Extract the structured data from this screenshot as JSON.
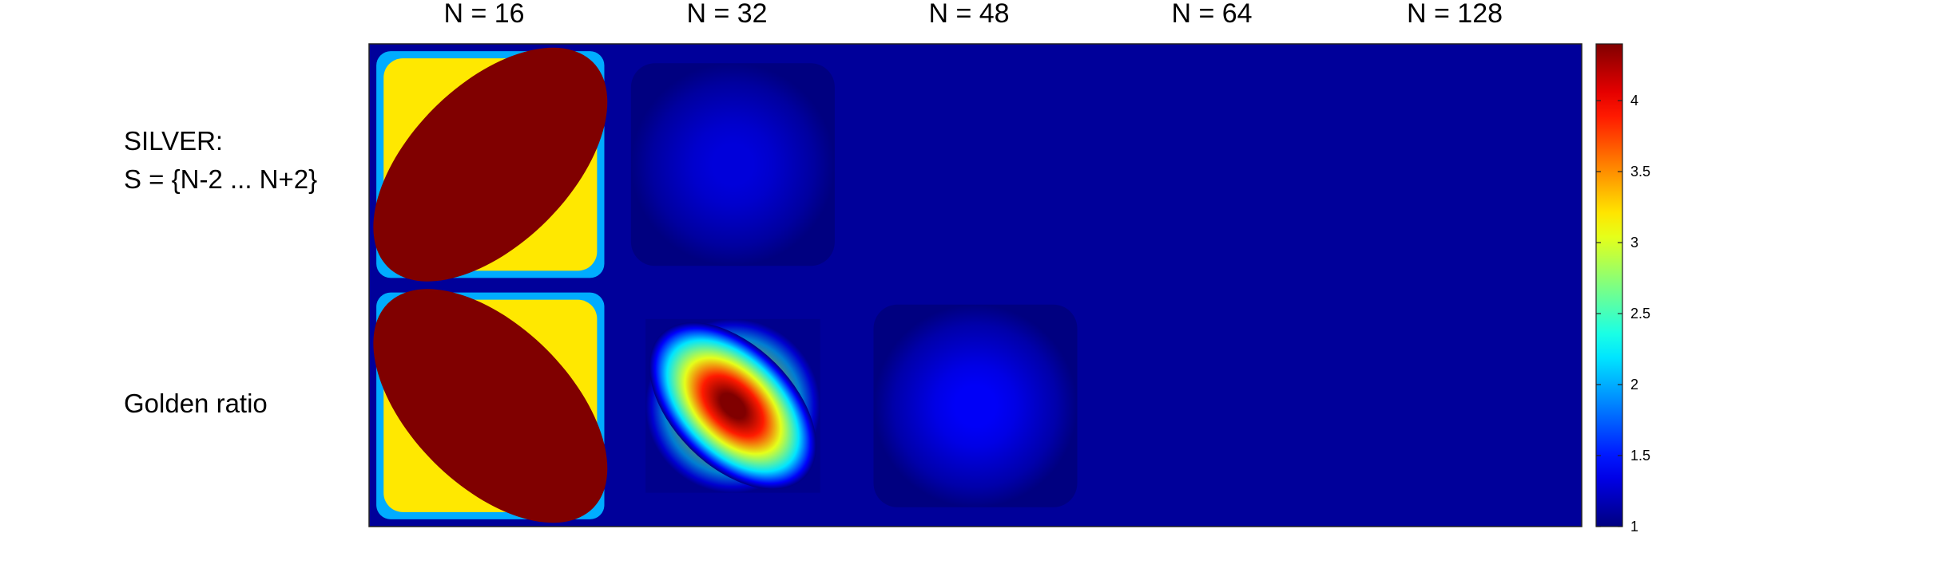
{
  "chart_data": {
    "type": "heatmap",
    "columns": [
      "N = 16",
      "N = 32",
      "N = 48",
      "N = 64",
      "N = 128"
    ],
    "rows": [
      {
        "label_lines": [
          "SILVER:",
          "S = {N-2 ... N+2}"
        ],
        "panels": [
          {
            "peak": 4.4,
            "shape": "diagonal-band-ascending",
            "orientation": "ascending"
          },
          {
            "peak": 1.3,
            "shape": "faint-blob",
            "orientation": "none"
          },
          {
            "peak": 1.0,
            "shape": "flat",
            "orientation": "none"
          },
          {
            "peak": 1.0,
            "shape": "flat",
            "orientation": "none"
          },
          {
            "peak": 1.0,
            "shape": "flat",
            "orientation": "none"
          }
        ]
      },
      {
        "label_lines": [
          "Golden ratio"
        ],
        "panels": [
          {
            "peak": 4.4,
            "shape": "diagonal-band-descending",
            "orientation": "descending"
          },
          {
            "peak": 4.4,
            "shape": "diamond-descending",
            "orientation": "descending"
          },
          {
            "peak": 1.4,
            "shape": "faint-blob",
            "orientation": "none"
          },
          {
            "peak": 1.0,
            "shape": "flat",
            "orientation": "none"
          },
          {
            "peak": 1.0,
            "shape": "flat",
            "orientation": "none"
          }
        ]
      }
    ],
    "colorbar": {
      "colormap": "jet",
      "range": [
        1,
        4.4
      ],
      "ticks": [
        1,
        1.5,
        2,
        2.5,
        3,
        3.5,
        4
      ],
      "tick_labels": [
        "1",
        "1.5",
        "2",
        "2.5",
        "3",
        "3.5",
        "4"
      ]
    }
  }
}
